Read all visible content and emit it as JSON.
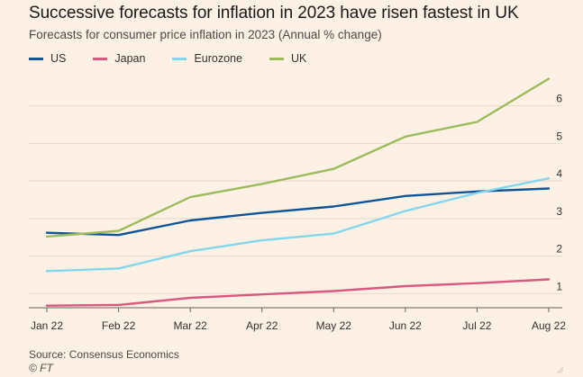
{
  "header": {
    "title": "Successive forecasts for inflation in 2023 have risen fastest in UK",
    "subtitle": "Forecasts for consumer price inflation in 2023 (Annual % change)"
  },
  "footer": {
    "source": "Source: Consensus Economics",
    "copyright": "© FT"
  },
  "colors": {
    "background": "#fdf1e6",
    "gridline": "#e6d9ce",
    "tick_text": "#33302e"
  },
  "chart_data": {
    "type": "line",
    "title": "Successive forecasts for inflation in 2023 have risen fastest in UK",
    "subtitle": "Forecasts for consumer price inflation in 2023 (Annual % change)",
    "xlabel": "",
    "ylabel": "",
    "x": [
      "Jan 22",
      "Feb 22",
      "Mar 22",
      "Apr 22",
      "May 22",
      "Jun 22",
      "Jul 22",
      "Aug 22"
    ],
    "ylim": [
      0.65,
      6.9
    ],
    "yticks": [
      1,
      2,
      3,
      4,
      5,
      6
    ],
    "grid": true,
    "legend_position": "top-left",
    "series": [
      {
        "name": "US",
        "color": "#0f5499",
        "values": [
          2.62,
          2.56,
          2.95,
          3.15,
          3.32,
          3.6,
          3.72,
          3.8
        ]
      },
      {
        "name": "Japan",
        "color": "#d9587d",
        "values": [
          0.68,
          0.7,
          0.89,
          0.98,
          1.07,
          1.2,
          1.28,
          1.38
        ]
      },
      {
        "name": "Eurozone",
        "color": "#84d6ec",
        "values": [
          1.6,
          1.67,
          2.13,
          2.42,
          2.6,
          3.2,
          3.68,
          4.07
        ]
      },
      {
        "name": "UK",
        "color": "#9dbb5b",
        "values": [
          2.52,
          2.67,
          3.57,
          3.92,
          4.32,
          5.18,
          5.57,
          6.72
        ]
      }
    ]
  }
}
